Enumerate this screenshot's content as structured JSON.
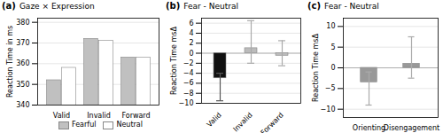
{
  "chart_data": [
    {
      "type": "bar",
      "title": "Gaze × Expression",
      "annotations": [
        "(a)"
      ],
      "ylabel": "Reaction Time in ms",
      "categories": [
        "Valid",
        "Invalid",
        "Forward"
      ],
      "series": [
        {
          "name": "Fearful",
          "color": "#c0c0c0",
          "values": [
            352,
            372,
            363
          ]
        },
        {
          "name": "Neutral",
          "color": "#ffffff",
          "values": [
            358,
            371,
            363
          ]
        }
      ],
      "ylim": [
        340,
        382
      ],
      "yticks": [
        340,
        350,
        360,
        370,
        380
      ],
      "grid": true,
      "legend": "bottom"
    },
    {
      "type": "bar",
      "title": "Fear - Neutral",
      "annotations": [
        "(b)"
      ],
      "ylabel": "Reaction Time msΔ",
      "categories": [
        "Valid",
        "Invalid",
        "Forward"
      ],
      "values": [
        -5.0,
        1.0,
        -0.5
      ],
      "errors_up": [
        1.0,
        5.5,
        3.0
      ],
      "errors_down": [
        4.5,
        3.0,
        2.0
      ],
      "colors": [
        "#111111",
        "#bbbbbb",
        "#bbbbbb"
      ],
      "error_colors": [
        "#555555",
        "#aaaaaa",
        "#aaaaaa"
      ],
      "ylim": [
        -10,
        7
      ],
      "yticks": [
        -10,
        -8,
        -6,
        -4,
        -2,
        0,
        2,
        4,
        6
      ],
      "grid": true
    },
    {
      "type": "bar",
      "title": "Fear - Neutral",
      "annotations": [
        "(c)"
      ],
      "ylabel": "Reaction Time msΔ",
      "categories": [
        "Orienting",
        "Disengagement"
      ],
      "values": [
        -3.5,
        1.0
      ],
      "errors_up": [
        2.5,
        6.5
      ],
      "errors_down": [
        5.5,
        3.5
      ],
      "color": "#999999",
      "error_colors": [
        "#aaaaaa",
        "#aaaaaa"
      ],
      "ylim": [
        -12,
        12
      ],
      "yticks": [
        -10,
        -5,
        0,
        5,
        10
      ],
      "grid": true
    }
  ]
}
